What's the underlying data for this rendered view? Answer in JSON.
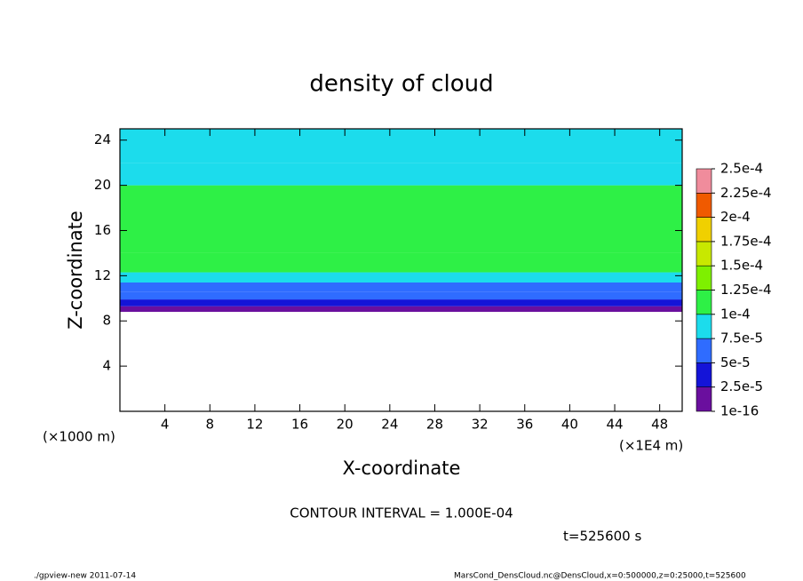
{
  "chart_data": {
    "type": "profile-heatmap",
    "title": "density of cloud",
    "x_label": "X-coordinate",
    "y_label": "Z-coordinate",
    "x_unit": "(×1E4 m)",
    "y_unit": "(×1000 m)",
    "xlim": [
      0,
      50
    ],
    "ylim": [
      0,
      25
    ],
    "xticks": [
      4,
      8,
      12,
      16,
      20,
      24,
      28,
      32,
      36,
      40,
      44,
      48
    ],
    "yticks": [
      4,
      8,
      12,
      16,
      20,
      24
    ],
    "z_bins": [
      8.8,
      9.3,
      9.9,
      10.6,
      11.4,
      12.3,
      14,
      20,
      22,
      25
    ],
    "values": [
      1e-05,
      3e-05,
      5.5e-05,
      7e-05,
      8e-05,
      0.000105,
      0.00011,
      9.5e-05,
      8e-05
    ],
    "levels": [
      {
        "value": 1e-16,
        "label": "1e-16"
      },
      {
        "value": 2.5e-05,
        "label": "2.5e-5"
      },
      {
        "value": 5e-05,
        "label": "5e-5"
      },
      {
        "value": 7.5e-05,
        "label": "7.5e-5"
      },
      {
        "value": 0.0001,
        "label": "1e-4"
      },
      {
        "value": 0.000125,
        "label": "1.25e-4"
      },
      {
        "value": 0.00015,
        "label": "1.5e-4"
      },
      {
        "value": 0.000175,
        "label": "1.75e-4"
      },
      {
        "value": 0.0002,
        "label": "2e-4"
      },
      {
        "value": 0.000225,
        "label": "2.25e-4"
      },
      {
        "value": 0.00025,
        "label": "2.5e-4"
      }
    ],
    "colors": [
      "#6a0f9e",
      "#1414d8",
      "#2f6cff",
      "#1cdcec",
      "#2ef046",
      "#7ef000",
      "#c8e800",
      "#f0d000",
      "#f05a00",
      "#f08c9c"
    ],
    "contour_interval": "CONTOUR INTERVAL = 1.000E-04",
    "time_label": "t=525600 s",
    "footer_left": "./gpview-new  2011-07-14",
    "footer_right": "MarsCond_DensCloud.nc@DensCloud,x=0:500000,z=0:25000,t=525600"
  }
}
